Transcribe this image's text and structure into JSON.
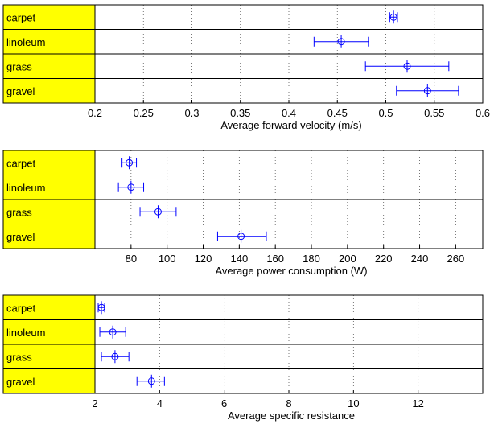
{
  "chart_data": [
    {
      "type": "errorbar",
      "categories": [
        "carpet",
        "linoleum",
        "grass",
        "gravel"
      ],
      "means": [
        0.508,
        0.454,
        0.522,
        0.543
      ],
      "lower": [
        0.504,
        0.426,
        0.479,
        0.511
      ],
      "upper": [
        0.512,
        0.482,
        0.565,
        0.575
      ],
      "xlim": [
        0.2,
        0.6
      ],
      "xticks": [
        0.2,
        0.25,
        0.3,
        0.35,
        0.4,
        0.45,
        0.5,
        0.55,
        0.6
      ],
      "xtick_labels": [
        "0.2",
        "0.25",
        "0.3",
        "0.35",
        "0.4",
        "0.45",
        "0.5",
        "0.55",
        "0.6"
      ],
      "xlabel": "Average forward velocity (m/s)",
      "grid": "vertical-dotted",
      "marker_color": "#0000ff",
      "label_fill": "#ffff00"
    },
    {
      "type": "errorbar",
      "categories": [
        "carpet",
        "linoleum",
        "grass",
        "gravel"
      ],
      "means": [
        79,
        80,
        95,
        141
      ],
      "lower": [
        75,
        73,
        85,
        128
      ],
      "upper": [
        83,
        87,
        105,
        155
      ],
      "xlim": [
        60,
        275
      ],
      "xticks": [
        80,
        100,
        120,
        140,
        160,
        180,
        200,
        220,
        240,
        260
      ],
      "xtick_labels": [
        "80",
        "100",
        "120",
        "140",
        "160",
        "180",
        "200",
        "220",
        "240",
        "260"
      ],
      "xlabel": "Average power consumption (W)",
      "grid": "vertical-dotted",
      "marker_color": "#0000ff",
      "label_fill": "#ffff00"
    },
    {
      "type": "errorbar",
      "categories": [
        "carpet",
        "linoleum",
        "grass",
        "gravel"
      ],
      "means": [
        2.2,
        2.55,
        2.62,
        3.75
      ],
      "lower": [
        2.1,
        2.15,
        2.2,
        3.3
      ],
      "upper": [
        2.3,
        2.95,
        3.05,
        4.15
      ],
      "xlim": [
        2,
        14
      ],
      "xticks": [
        2,
        4,
        6,
        8,
        10,
        12
      ],
      "xtick_labels": [
        "2",
        "4",
        "6",
        "8",
        "10",
        "12"
      ],
      "xlabel": "Average specific resistance",
      "grid": "vertical-dotted",
      "marker_color": "#0000ff",
      "label_fill": "#ffff00"
    }
  ]
}
